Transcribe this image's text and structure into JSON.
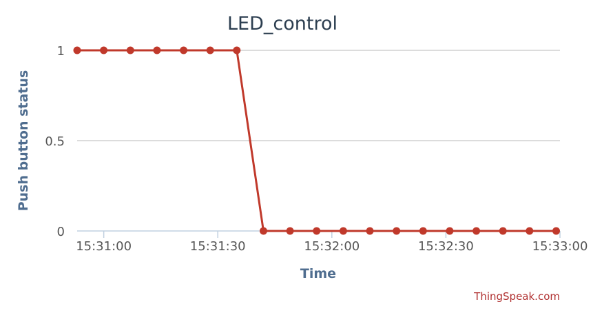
{
  "chart_data": {
    "type": "line",
    "title": "LED_control",
    "xlabel": "Time",
    "ylabel": "Push button status",
    "x_ticks": [
      "15:31:00",
      "15:31:30",
      "15:32:00",
      "15:32:30",
      "15:33:00"
    ],
    "y_ticks": [
      "0",
      "0.5",
      "1"
    ],
    "ylim": [
      0,
      1
    ],
    "xlim": [
      "15:30:53",
      "15:33:00"
    ],
    "grid": true,
    "legend": "none",
    "series": [
      {
        "color": "#c0392b",
        "x": [
          "15:30:53",
          "15:31:00",
          "15:31:07",
          "15:31:14",
          "15:31:21",
          "15:31:28",
          "15:31:35",
          "15:31:42",
          "15:31:49",
          "15:31:56",
          "15:32:03",
          "15:32:10",
          "15:32:17",
          "15:32:24",
          "15:32:31",
          "15:32:38",
          "15:32:45",
          "15:32:52",
          "15:32:59"
        ],
        "values": [
          1,
          1,
          1,
          1,
          1,
          1,
          1,
          0,
          0,
          0,
          0,
          0,
          0,
          0,
          0,
          0,
          0,
          0,
          0
        ]
      }
    ],
    "credit": "ThingSpeak.com"
  }
}
